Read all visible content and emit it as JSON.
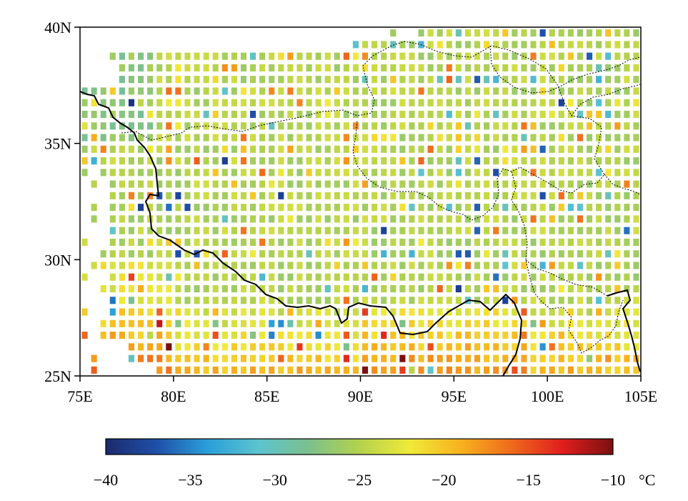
{
  "map": {
    "lon_range": [
      75,
      105
    ],
    "lat_range": [
      25,
      40
    ],
    "x_ticks": [
      "75E",
      "80E",
      "85E",
      "90E",
      "95E",
      "100E",
      "105E"
    ],
    "y_ticks": [
      "25N",
      "30N",
      "35N",
      "40N"
    ],
    "grid_step_degrees": 0.5,
    "field": "temperature at grid points over the Tibetan Plateau region"
  },
  "colorbar": {
    "min": -40,
    "max": -10,
    "tick_labels": [
      "−40",
      "−35",
      "−30",
      "−25",
      "−20",
      "−15",
      "−10"
    ],
    "unit": "°C",
    "colors": [
      "#1b2a6b",
      "#1f4fa8",
      "#2a9fd8",
      "#5cc3cf",
      "#7cc08c",
      "#b4d24c",
      "#f0ea3a",
      "#f6b21e",
      "#ef6a1c",
      "#e01e1e",
      "#7a1010"
    ]
  }
}
